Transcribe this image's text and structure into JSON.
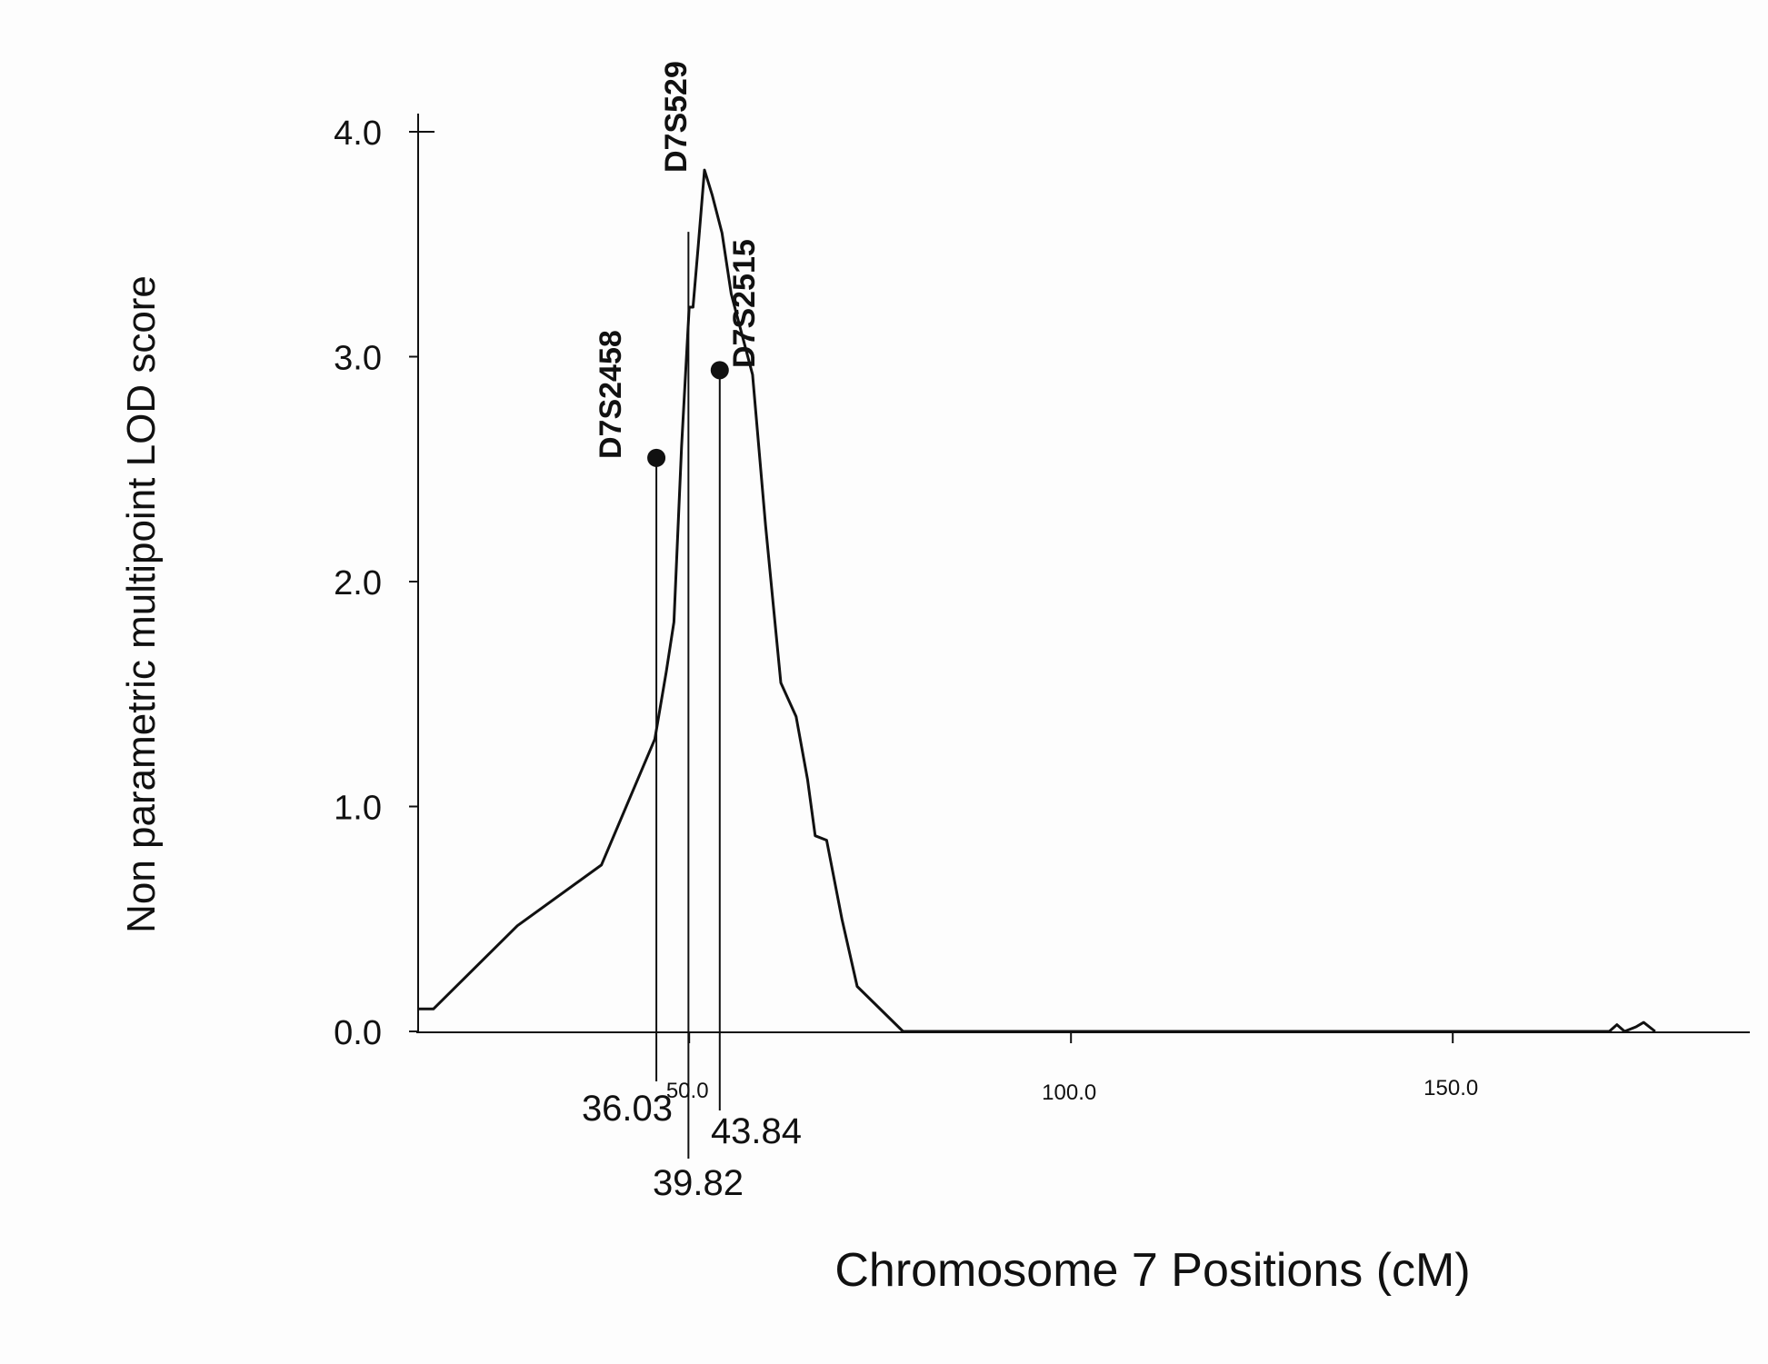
{
  "chart_data": {
    "type": "line",
    "ylabel": "Non parametric multipoint LOD score",
    "xlabel": "Chromosome 7 Positions (cM)",
    "xlim": [
      0,
      175
    ],
    "ylim": [
      0,
      4.0
    ],
    "y_ticks": [
      "0.0",
      "1.0",
      "2.0",
      "3.0",
      "4.0"
    ],
    "x_ticks": [
      "50.0",
      "100.0",
      "150.0"
    ],
    "grid": false,
    "series": [
      {
        "x": [
          0,
          2,
          13,
          24,
          31,
          32.5,
          33.5,
          34.5,
          35.5,
          36,
          36.7,
          37.5,
          38.5,
          39.8,
          41,
          43.8,
          45.5,
          47.5,
          49.5,
          51,
          52,
          53.5,
          55.5,
          57.5,
          63.5,
          156,
          157,
          158,
          159.5,
          160.5,
          162
        ],
        "y": [
          0.1,
          0.1,
          0.47,
          0.74,
          1.3,
          1.6,
          1.82,
          2.6,
          3.22,
          3.22,
          3.5,
          3.83,
          3.72,
          3.55,
          3.28,
          2.92,
          2.25,
          1.55,
          1.4,
          1.12,
          0.87,
          0.85,
          0.5,
          0.2,
          0.0,
          0.0,
          0.03,
          0.0,
          0.02,
          0.04,
          0.0
        ]
      }
    ],
    "markers": [
      {
        "name": "D7S2458",
        "x": 31.2,
        "y": 2.55,
        "position_label": "36.03"
      },
      {
        "name": "D7S529",
        "x": 35.4,
        "y": 3.83,
        "position_label": "39.82"
      },
      {
        "name": "D7S2515",
        "x": 39.5,
        "y": 2.94,
        "position_label": "43.84"
      }
    ]
  }
}
